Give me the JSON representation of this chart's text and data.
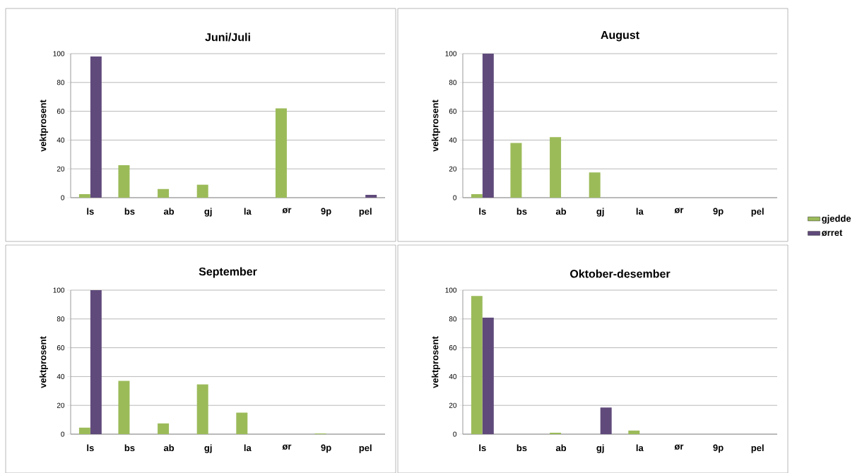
{
  "chart_data": [
    {
      "type": "bar",
      "title": "Juni/Juli",
      "ylabel": "vektprosent",
      "categories": [
        "ls",
        "bs",
        "ab",
        "gj",
        "la",
        "ør",
        "9p",
        "pel"
      ],
      "series": [
        {
          "color": "#9bbb59",
          "values": [
            2.5,
            22.5,
            6,
            9,
            0,
            62,
            0,
            0
          ]
        },
        {
          "color": "#604a7b",
          "values": [
            98,
            0,
            0,
            0,
            0,
            0,
            0,
            2
          ]
        }
      ],
      "ylim": [
        0,
        100
      ],
      "yticks": [
        0,
        20,
        40,
        60,
        80,
        100
      ],
      "grid": "y"
    },
    {
      "type": "bar",
      "title": "August",
      "ylabel": "vektprosent",
      "categories": [
        "ls",
        "bs",
        "ab",
        "gj",
        "la",
        "ør",
        "9p",
        "pel"
      ],
      "series": [
        {
          "name": "gjedde",
          "color": "#9bbb59",
          "values": [
            2.5,
            38,
            42,
            17.5,
            0,
            0,
            0,
            0
          ]
        },
        {
          "name": "ørret",
          "color": "#604a7b",
          "values": [
            100,
            0,
            0,
            0,
            0,
            0,
            0,
            0
          ]
        }
      ],
      "ylim": [
        0,
        100
      ],
      "yticks": [
        0,
        20,
        40,
        60,
        80,
        100
      ],
      "grid": "y",
      "legend": "right"
    },
    {
      "type": "bar",
      "title": "September",
      "ylabel": "vektprosent",
      "categories": [
        "ls",
        "bs",
        "ab",
        "gj",
        "la",
        "ør",
        "9p",
        "pel"
      ],
      "series": [
        {
          "color": "#9bbb59",
          "values": [
            4.5,
            37,
            7.5,
            34.5,
            15,
            0,
            0.5,
            0
          ]
        },
        {
          "color": "#604a7b",
          "values": [
            100,
            0,
            0,
            0,
            0,
            0,
            0,
            0
          ]
        }
      ],
      "ylim": [
        0,
        100
      ],
      "yticks": [
        0,
        20,
        40,
        60,
        80,
        100
      ],
      "grid": "y"
    },
    {
      "type": "bar",
      "title": "Oktober-desember",
      "ylabel": "vektprosent",
      "categories": [
        "ls",
        "bs",
        "ab",
        "gj",
        "la",
        "ør",
        "9p",
        "pel"
      ],
      "series": [
        {
          "color": "#9bbb59",
          "values": [
            96,
            0,
            1,
            0,
            2.5,
            0,
            0,
            0
          ]
        },
        {
          "color": "#604a7b",
          "values": [
            81,
            0,
            0,
            18.5,
            0,
            0,
            0,
            0
          ]
        }
      ],
      "ylim": [
        0,
        100
      ],
      "yticks": [
        0,
        20,
        40,
        60,
        80,
        100
      ],
      "grid": "y"
    }
  ]
}
